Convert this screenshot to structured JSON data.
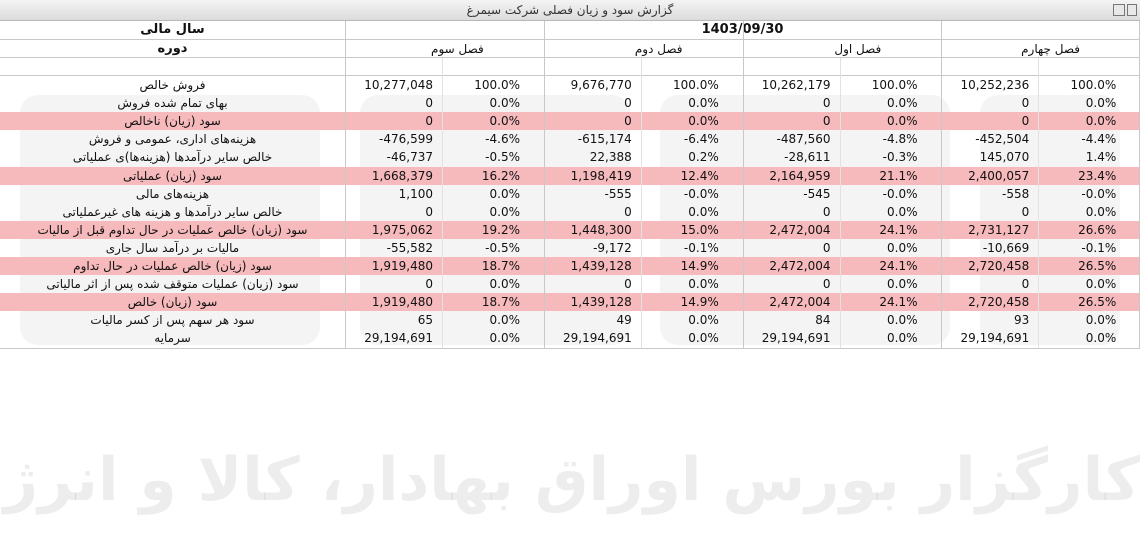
{
  "window_title": "گزارش سود و زیان فصلی شرکت سیمرغ",
  "watermark": "کارگزار بورس اوراق بهادار، کالا و انرژی",
  "table": {
    "fiscal_year_label": "سال مالی",
    "period_label": "دوره",
    "fiscal_date": "1403/09/30",
    "periods": [
      "فصل سوم",
      "فصل دوم",
      "فصل اول",
      "فصل چهارم"
    ],
    "rows": [
      {
        "label": "فروش خالص",
        "highlight": false,
        "cells": [
          "10,277,048",
          "100.0%",
          "9,676,770",
          "100.0%",
          "10,262,179",
          "100.0%",
          "10,252,236",
          "100.0%"
        ]
      },
      {
        "label": "بهای تمام شده فروش",
        "highlight": false,
        "cells": [
          "0",
          "0.0%",
          "0",
          "0.0%",
          "0",
          "0.0%",
          "0",
          "0.0%"
        ]
      },
      {
        "label": "سود (زیان) ناخالص",
        "highlight": true,
        "cells": [
          "0",
          "0.0%",
          "0",
          "0.0%",
          "0",
          "0.0%",
          "0",
          "0.0%"
        ]
      },
      {
        "label": "هزینه‌های اداری، عمومی و فروش",
        "highlight": false,
        "cells": [
          "-476,599",
          "-4.6%",
          "-615,174",
          "-6.4%",
          "-487,560",
          "-4.8%",
          "-452,504",
          "-4.4%"
        ]
      },
      {
        "label": "خالص سایر درآمدها (هزینه‌ها)ی عملیاتی",
        "highlight": false,
        "cells": [
          "-46,737",
          "-0.5%",
          "22,388",
          "0.2%",
          "-28,611",
          "-0.3%",
          "145,070",
          "1.4%"
        ]
      },
      {
        "label": "سود (زیان) عملیاتی",
        "highlight": true,
        "cells": [
          "1,668,379",
          "16.2%",
          "1,198,419",
          "12.4%",
          "2,164,959",
          "21.1%",
          "2,400,057",
          "23.4%"
        ]
      },
      {
        "label": "هزینه‌های مالی",
        "highlight": false,
        "cells": [
          "1,100",
          "0.0%",
          "-555",
          "-0.0%",
          "-545",
          "-0.0%",
          "-558",
          "-0.0%"
        ]
      },
      {
        "label": "خالص سایر درآمدها و هزینه های غیرعملیاتی",
        "highlight": false,
        "cells": [
          "0",
          "0.0%",
          "0",
          "0.0%",
          "0",
          "0.0%",
          "0",
          "0.0%"
        ]
      },
      {
        "label": "سود (زیان) خالص عملیات در حال تداوم قبل از مالیات",
        "highlight": true,
        "cells": [
          "1,975,062",
          "19.2%",
          "1,448,300",
          "15.0%",
          "2,472,004",
          "24.1%",
          "2,731,127",
          "26.6%"
        ]
      },
      {
        "label": "مالیات بر درآمد سال جاری",
        "highlight": false,
        "cells": [
          "-55,582",
          "-0.5%",
          "-9,172",
          "-0.1%",
          "0",
          "0.0%",
          "-10,669",
          "-0.1%"
        ]
      },
      {
        "label": "سود (زیان) خالص عملیات در حال تداوم",
        "highlight": true,
        "cells": [
          "1,919,480",
          "18.7%",
          "1,439,128",
          "14.9%",
          "2,472,004",
          "24.1%",
          "2,720,458",
          "26.5%"
        ]
      },
      {
        "label": "سود (زیان) عملیات متوقف شده پس از اثر مالیاتی",
        "highlight": false,
        "cells": [
          "0",
          "0.0%",
          "0",
          "0.0%",
          "0",
          "0.0%",
          "0",
          "0.0%"
        ]
      },
      {
        "label": "سود (زیان) خالص",
        "highlight": true,
        "cells": [
          "1,919,480",
          "18.7%",
          "1,439,128",
          "14.9%",
          "2,472,004",
          "24.1%",
          "2,720,458",
          "26.5%"
        ]
      },
      {
        "label": "سود هر سهم پس از کسر مالیات",
        "highlight": false,
        "cells": [
          "65",
          "0.0%",
          "49",
          "0.0%",
          "84",
          "0.0%",
          "93",
          "0.0%"
        ]
      },
      {
        "label": "سرمایه",
        "highlight": false,
        "cells": [
          "29,194,691",
          "0.0%",
          "29,194,691",
          "0.0%",
          "29,194,691",
          "0.0%",
          "29,194,691",
          "0.0%"
        ]
      }
    ]
  }
}
